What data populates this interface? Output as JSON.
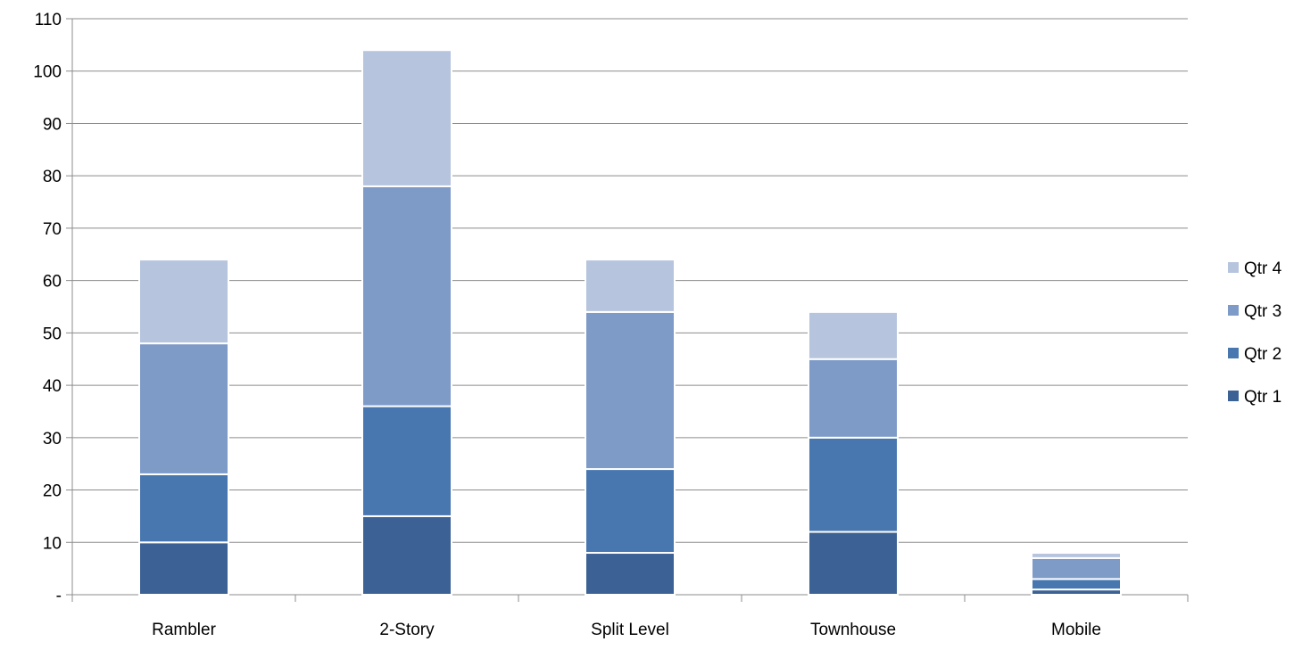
{
  "chart_data": {
    "type": "bar",
    "stacked": true,
    "title": "",
    "xlabel": "",
    "ylabel": "",
    "categories": [
      "Rambler",
      "2-Story",
      "Split Level",
      "Townhouse",
      "Mobile"
    ],
    "series": [
      {
        "name": "Qtr 1",
        "values": [
          10,
          15,
          8,
          12,
          1
        ],
        "color": "#3C6195"
      },
      {
        "name": "Qtr 2",
        "values": [
          13,
          21,
          16,
          18,
          2
        ],
        "color": "#4877B0"
      },
      {
        "name": "Qtr 3",
        "values": [
          25,
          42,
          30,
          15,
          4
        ],
        "color": "#7E9BC8"
      },
      {
        "name": "Qtr 4",
        "values": [
          16,
          26,
          10,
          9,
          1
        ],
        "color": "#B6C4DE"
      }
    ],
    "ylim": [
      0,
      110
    ],
    "ytick_step": 10,
    "yticks": [
      "-",
      "10",
      "20",
      "30",
      "40",
      "50",
      "60",
      "70",
      "80",
      "90",
      "100",
      "110"
    ],
    "grid": true,
    "legend": {
      "position": "right",
      "entries": [
        "Qtr 4",
        "Qtr 3",
        "Qtr 2",
        "Qtr 1"
      ]
    }
  }
}
